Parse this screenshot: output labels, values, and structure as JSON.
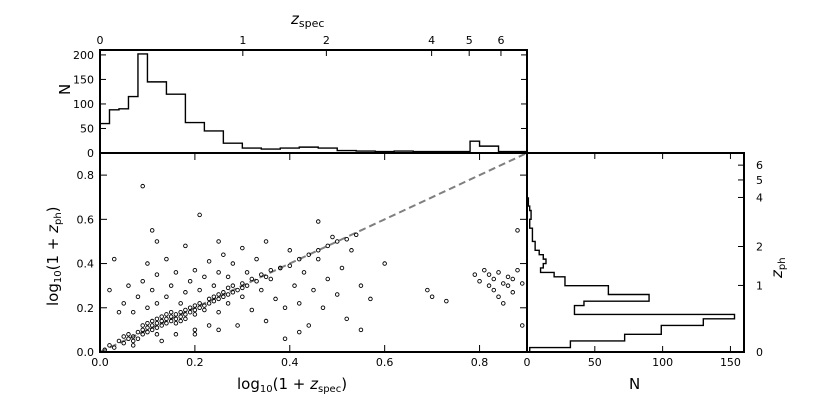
{
  "chart_data": [
    {
      "panel": "top-histogram",
      "type": "histogram",
      "xlabel": "log10(1 + z_spec)",
      "top_axis_label": "z_spec",
      "top_axis_ticks": [
        "0",
        "1",
        "2",
        "4",
        "5",
        "6"
      ],
      "top_axis_values": [
        0,
        1,
        2,
        4,
        5,
        6
      ],
      "ylabel": "N",
      "xlim": [
        0,
        0.9
      ],
      "ylim": [
        0,
        210
      ],
      "yticks": [
        0,
        50,
        100,
        150,
        200
      ],
      "bin_edges": [
        0,
        0.02,
        0.04,
        0.06,
        0.08,
        0.1,
        0.14,
        0.18,
        0.22,
        0.26,
        0.3,
        0.34,
        0.38,
        0.42,
        0.46,
        0.5,
        0.54,
        0.58,
        0.62,
        0.66,
        0.7,
        0.74,
        0.78,
        0.8,
        0.84,
        0.86,
        0.9
      ],
      "counts": [
        60,
        88,
        90,
        115,
        202,
        145,
        120,
        62,
        45,
        20,
        10,
        8,
        10,
        12,
        10,
        5,
        4,
        3,
        4,
        3,
        3,
        3,
        24,
        14,
        3,
        3
      ]
    },
    {
      "panel": "scatter",
      "type": "scatter",
      "xlabel": "log10(1 + z_spec)",
      "ylabel": "log10(1 + z_ph)",
      "xlim": [
        0,
        0.9
      ],
      "ylim": [
        0,
        0.9
      ],
      "xticks": [
        "0.0",
        "0.2",
        "0.4",
        "0.6",
        "0.8"
      ],
      "xtick_values": [
        0,
        0.2,
        0.4,
        0.6,
        0.8
      ],
      "yticks": [
        "0.0",
        "0.2",
        "0.4",
        "0.6",
        "0.8"
      ],
      "ytick_values": [
        0,
        0.2,
        0.4,
        0.6,
        0.8
      ],
      "identity_line": true,
      "points": [
        [
          0.01,
          0.01
        ],
        [
          0.02,
          0.03
        ],
        [
          0.03,
          0.02
        ],
        [
          0.04,
          0.05
        ],
        [
          0.05,
          0.04
        ],
        [
          0.05,
          0.07
        ],
        [
          0.06,
          0.06
        ],
        [
          0.06,
          0.08
        ],
        [
          0.07,
          0.05
        ],
        [
          0.07,
          0.07
        ],
        [
          0.08,
          0.09
        ],
        [
          0.08,
          0.06
        ],
        [
          0.09,
          0.1
        ],
        [
          0.09,
          0.08
        ],
        [
          0.1,
          0.09
        ],
        [
          0.1,
          0.11
        ],
        [
          0.1,
          0.13
        ],
        [
          0.11,
          0.1
        ],
        [
          0.11,
          0.12
        ],
        [
          0.11,
          0.14
        ],
        [
          0.12,
          0.11
        ],
        [
          0.12,
          0.13
        ],
        [
          0.12,
          0.15
        ],
        [
          0.13,
          0.12
        ],
        [
          0.13,
          0.14
        ],
        [
          0.13,
          0.16
        ],
        [
          0.14,
          0.13
        ],
        [
          0.14,
          0.15
        ],
        [
          0.14,
          0.17
        ],
        [
          0.15,
          0.14
        ],
        [
          0.15,
          0.16
        ],
        [
          0.15,
          0.18
        ],
        [
          0.16,
          0.15
        ],
        [
          0.16,
          0.17
        ],
        [
          0.16,
          0.13
        ],
        [
          0.17,
          0.16
        ],
        [
          0.17,
          0.18
        ],
        [
          0.17,
          0.14
        ],
        [
          0.18,
          0.17
        ],
        [
          0.18,
          0.19
        ],
        [
          0.18,
          0.15
        ],
        [
          0.19,
          0.18
        ],
        [
          0.19,
          0.2
        ],
        [
          0.2,
          0.19
        ],
        [
          0.2,
          0.21
        ],
        [
          0.2,
          0.17
        ],
        [
          0.21,
          0.2
        ],
        [
          0.21,
          0.22
        ],
        [
          0.22,
          0.21
        ],
        [
          0.22,
          0.19
        ],
        [
          0.23,
          0.22
        ],
        [
          0.23,
          0.24
        ],
        [
          0.24,
          0.23
        ],
        [
          0.24,
          0.25
        ],
        [
          0.25,
          0.24
        ],
        [
          0.25,
          0.26
        ],
        [
          0.26,
          0.25
        ],
        [
          0.26,
          0.27
        ],
        [
          0.27,
          0.26
        ],
        [
          0.27,
          0.29
        ],
        [
          0.28,
          0.27
        ],
        [
          0.28,
          0.3
        ],
        [
          0.29,
          0.28
        ],
        [
          0.3,
          0.29
        ],
        [
          0.3,
          0.31
        ],
        [
          0.31,
          0.3
        ],
        [
          0.32,
          0.33
        ],
        [
          0.33,
          0.32
        ],
        [
          0.34,
          0.35
        ],
        [
          0.35,
          0.34
        ],
        [
          0.36,
          0.37
        ],
        [
          0.38,
          0.38
        ],
        [
          0.4,
          0.39
        ],
        [
          0.42,
          0.42
        ],
        [
          0.44,
          0.44
        ],
        [
          0.46,
          0.46
        ],
        [
          0.48,
          0.48
        ],
        [
          0.5,
          0.5
        ],
        [
          0.52,
          0.51
        ],
        [
          0.54,
          0.53
        ],
        [
          0.05,
          0.22
        ],
        [
          0.06,
          0.3
        ],
        [
          0.07,
          0.18
        ],
        [
          0.08,
          0.25
        ],
        [
          0.09,
          0.32
        ],
        [
          0.1,
          0.2
        ],
        [
          0.1,
          0.4
        ],
        [
          0.11,
          0.28
        ],
        [
          0.12,
          0.22
        ],
        [
          0.12,
          0.35
        ],
        [
          0.13,
          0.05
        ],
        [
          0.14,
          0.25
        ],
        [
          0.14,
          0.42
        ],
        [
          0.15,
          0.3
        ],
        [
          0.16,
          0.08
        ],
        [
          0.16,
          0.36
        ],
        [
          0.17,
          0.22
        ],
        [
          0.18,
          0.27
        ],
        [
          0.18,
          0.48
        ],
        [
          0.19,
          0.32
        ],
        [
          0.2,
          0.1
        ],
        [
          0.2,
          0.37
        ],
        [
          0.21,
          0.28
        ],
        [
          0.22,
          0.34
        ],
        [
          0.23,
          0.12
        ],
        [
          0.23,
          0.41
        ],
        [
          0.24,
          0.3
        ],
        [
          0.25,
          0.18
        ],
        [
          0.25,
          0.36
        ],
        [
          0.26,
          0.44
        ],
        [
          0.27,
          0.22
        ],
        [
          0.27,
          0.34
        ],
        [
          0.28,
          0.4
        ],
        [
          0.29,
          0.12
        ],
        [
          0.3,
          0.25
        ],
        [
          0.3,
          0.47
        ],
        [
          0.31,
          0.36
        ],
        [
          0.32,
          0.19
        ],
        [
          0.33,
          0.42
        ],
        [
          0.34,
          0.28
        ],
        [
          0.35,
          0.14
        ],
        [
          0.35,
          0.5
        ],
        [
          0.36,
          0.33
        ],
        [
          0.37,
          0.24
        ],
        [
          0.38,
          0.38
        ],
        [
          0.39,
          0.2
        ],
        [
          0.4,
          0.46
        ],
        [
          0.41,
          0.3
        ],
        [
          0.42,
          0.22
        ],
        [
          0.43,
          0.36
        ],
        [
          0.44,
          0.12
        ],
        [
          0.45,
          0.28
        ],
        [
          0.46,
          0.42
        ],
        [
          0.47,
          0.2
        ],
        [
          0.48,
          0.33
        ],
        [
          0.49,
          0.52
        ],
        [
          0.5,
          0.26
        ],
        [
          0.51,
          0.38
        ],
        [
          0.52,
          0.15
        ],
        [
          0.53,
          0.46
        ],
        [
          0.55,
          0.3
        ],
        [
          0.57,
          0.24
        ],
        [
          0.6,
          0.4
        ],
        [
          0.03,
          0.42
        ],
        [
          0.04,
          0.18
        ],
        [
          0.02,
          0.28
        ],
        [
          0.09,
          0.75
        ],
        [
          0.11,
          0.55
        ],
        [
          0.21,
          0.62
        ],
        [
          0.12,
          0.5
        ],
        [
          0.25,
          0.5
        ],
        [
          0.46,
          0.59
        ],
        [
          0.2,
          0.08
        ],
        [
          0.25,
          0.1
        ],
        [
          0.39,
          0.06
        ],
        [
          0.42,
          0.09
        ],
        [
          0.55,
          0.1
        ],
        [
          0.12,
          0.08
        ],
        [
          0.09,
          0.12
        ],
        [
          0.07,
          0.03
        ],
        [
          0.69,
          0.28
        ],
        [
          0.7,
          0.25
        ],
        [
          0.73,
          0.23
        ],
        [
          0.79,
          0.35
        ],
        [
          0.8,
          0.32
        ],
        [
          0.81,
          0.37
        ],
        [
          0.82,
          0.3
        ],
        [
          0.82,
          0.35
        ],
        [
          0.83,
          0.28
        ],
        [
          0.83,
          0.33
        ],
        [
          0.84,
          0.36
        ],
        [
          0.84,
          0.25
        ],
        [
          0.85,
          0.31
        ],
        [
          0.85,
          0.22
        ],
        [
          0.86,
          0.34
        ],
        [
          0.86,
          0.3
        ],
        [
          0.87,
          0.27
        ],
        [
          0.87,
          0.33
        ],
        [
          0.88,
          0.37
        ],
        [
          0.89,
          0.31
        ],
        [
          0.88,
          0.55
        ],
        [
          0.89,
          0.12
        ]
      ]
    },
    {
      "panel": "right-histogram",
      "type": "histogram",
      "orientation": "horizontal",
      "xlabel": "N",
      "ylabel": "z_ph",
      "right_axis_ticks": [
        "0",
        "1",
        "2",
        "4",
        "5",
        "6"
      ],
      "right_axis_values": [
        0,
        1,
        2,
        4,
        5,
        6
      ],
      "xlim": [
        0,
        160
      ],
      "xticks": [
        0,
        50,
        100,
        150
      ],
      "ylim": [
        0,
        0.9
      ],
      "bin_edges": [
        0,
        0.02,
        0.05,
        0.08,
        0.12,
        0.15,
        0.17,
        0.21,
        0.23,
        0.26,
        0.3,
        0.34,
        0.36,
        0.38,
        0.4,
        0.42,
        0.44,
        0.46,
        0.48,
        0.5,
        0.52,
        0.56,
        0.6,
        0.64,
        0.66,
        0.7
      ],
      "counts": [
        2,
        32,
        72,
        99,
        130,
        153,
        35,
        42,
        90,
        60,
        28,
        20,
        10,
        12,
        14,
        12,
        9,
        6,
        6,
        4,
        4,
        2,
        3,
        2,
        1
      ]
    }
  ]
}
